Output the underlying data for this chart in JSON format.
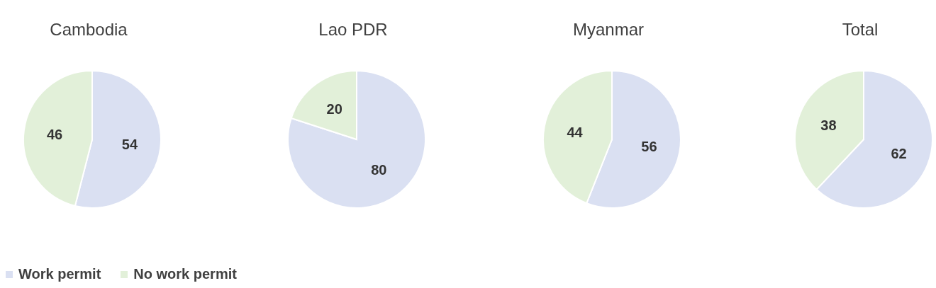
{
  "chart_data": [
    {
      "type": "pie",
      "title": "Cambodia",
      "categories": [
        "Work permit",
        "No work permit"
      ],
      "values": [
        54,
        46
      ],
      "colors": [
        "#dae0f2",
        "#e2f0d9"
      ],
      "data_labels": true,
      "legend": "bottom"
    },
    {
      "type": "pie",
      "title": "Lao PDR",
      "categories": [
        null,
        null
      ],
      "values": [
        80,
        20
      ],
      "colors": [
        "#dae0f2",
        "#e2f0d9"
      ],
      "data_labels": true
    },
    {
      "type": "pie",
      "title": "Myanmar",
      "categories": [
        null,
        null
      ],
      "values": [
        56,
        44
      ],
      "colors": [
        "#dae0f2",
        "#e2f0d9"
      ],
      "data_labels": true
    },
    {
      "type": "pie",
      "title": "Total",
      "categories": [
        null,
        null
      ],
      "values": [
        62,
        38
      ],
      "colors": [
        "#dae0f2",
        "#e2f0d9"
      ],
      "data_labels": true
    }
  ]
}
